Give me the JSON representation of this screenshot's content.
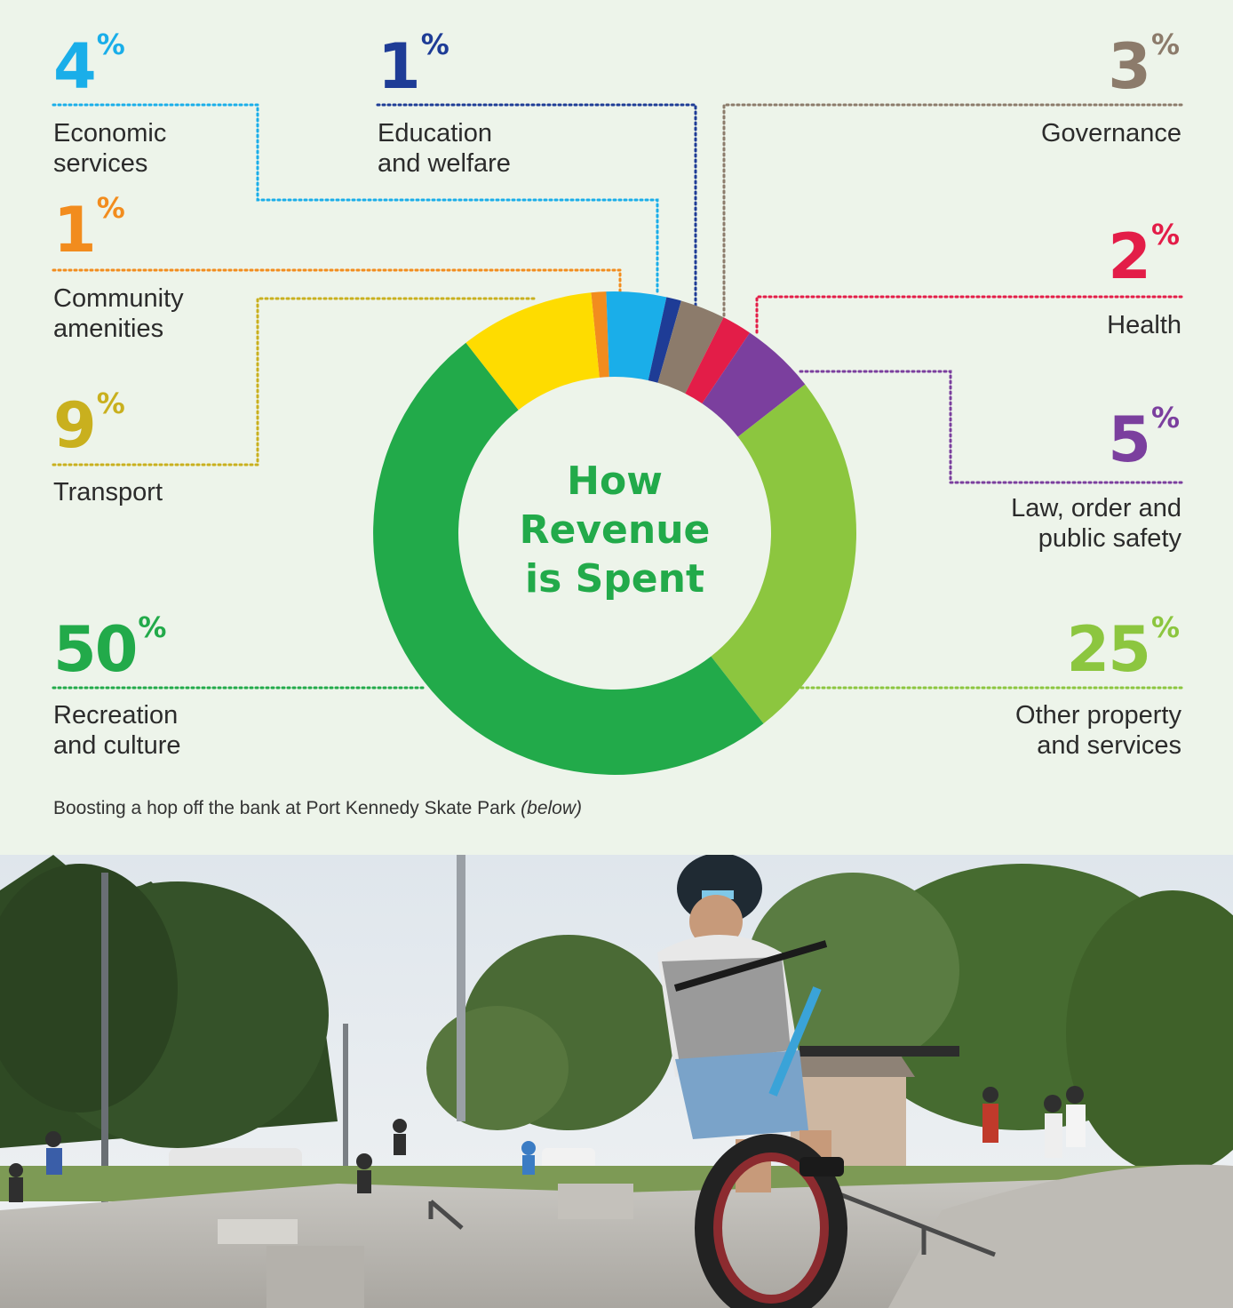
{
  "chart_data": {
    "type": "pie",
    "variant": "donut",
    "title": "How\nRevenue\nis Spent",
    "slices": [
      {
        "label": "Community\namenities",
        "value": 1,
        "color": "#f28c1e"
      },
      {
        "label": "Economic\nservices",
        "value": 4,
        "color": "#1aaee9"
      },
      {
        "label": "Education\nand welfare",
        "value": 1,
        "color": "#1e3c96"
      },
      {
        "label": "Governance",
        "value": 3,
        "color": "#8c7b6b"
      },
      {
        "label": "Health",
        "value": 2,
        "color": "#e31d48"
      },
      {
        "label": "Law, order and\npublic safety",
        "value": 5,
        "color": "#7b3f9e"
      },
      {
        "label": "Other property\nand services",
        "value": 25,
        "color": "#8cc63f"
      },
      {
        "label": "Recreation\nand culture",
        "value": 50,
        "color": "#22aa4a"
      },
      {
        "label": "Transport",
        "value": 9,
        "color": "#fedc00"
      }
    ]
  },
  "callouts": {
    "economic": {
      "value": "4",
      "sym": "%",
      "color": "#1aaee9"
    },
    "education": {
      "value": "1",
      "sym": "%",
      "color": "#1e3c96"
    },
    "governance": {
      "value": "3",
      "sym": "%",
      "color": "#8c7b6b"
    },
    "community": {
      "value": "1",
      "sym": "%",
      "color": "#f28c1e"
    },
    "health": {
      "value": "2",
      "sym": "%",
      "color": "#e31d48"
    },
    "transport": {
      "value": "9",
      "sym": "%",
      "color": "#c9b01e"
    },
    "law": {
      "value": "5",
      "sym": "%",
      "color": "#7b3f9e"
    },
    "recreation": {
      "value": "50",
      "sym": "%",
      "color": "#22aa4a"
    },
    "other": {
      "value": "25",
      "sym": "%",
      "color": "#8cc63f"
    }
  },
  "center_title_color": "#22aa4a",
  "caption": {
    "text": "Boosting a hop off the bank at Port Kennedy Skate Park",
    "italic": "(below)"
  },
  "photo": {
    "description_icon": "skate-park-photo"
  }
}
